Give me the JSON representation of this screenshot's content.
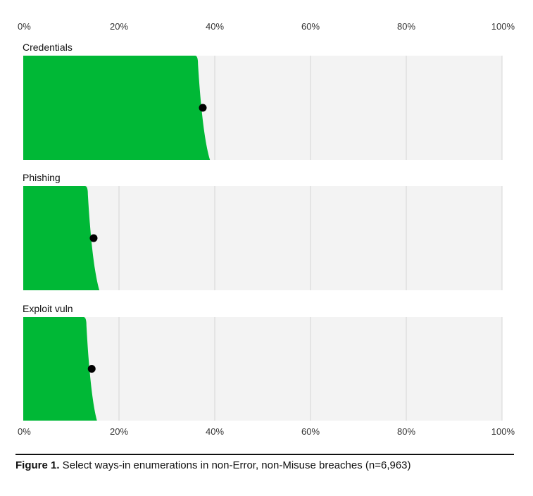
{
  "chart_data": {
    "type": "area",
    "xlim": [
      0,
      100
    ],
    "x_unit": "%",
    "ticks": [
      "0%",
      "20%",
      "40%",
      "60%",
      "80%",
      "100%"
    ],
    "grid": true,
    "colors": {
      "fill": "#00b836",
      "panel": "#f3f3f3",
      "grid": "#d4d4d4",
      "point": "#000000"
    },
    "series": [
      {
        "name": "Credentials",
        "value": 37.5,
        "edge_low": 36.5,
        "edge_high": 39
      },
      {
        "name": "Phishing",
        "value": 14.7,
        "edge_low": 13.5,
        "edge_high": 15.9
      },
      {
        "name": "Exploit vuln",
        "value": 14.3,
        "edge_low": 13.2,
        "edge_high": 15.4
      }
    ]
  },
  "caption": {
    "label": "Figure 1.",
    "text": " Select ways-in enumerations in non-Error, non-Misuse breaches (n=6,963)"
  }
}
